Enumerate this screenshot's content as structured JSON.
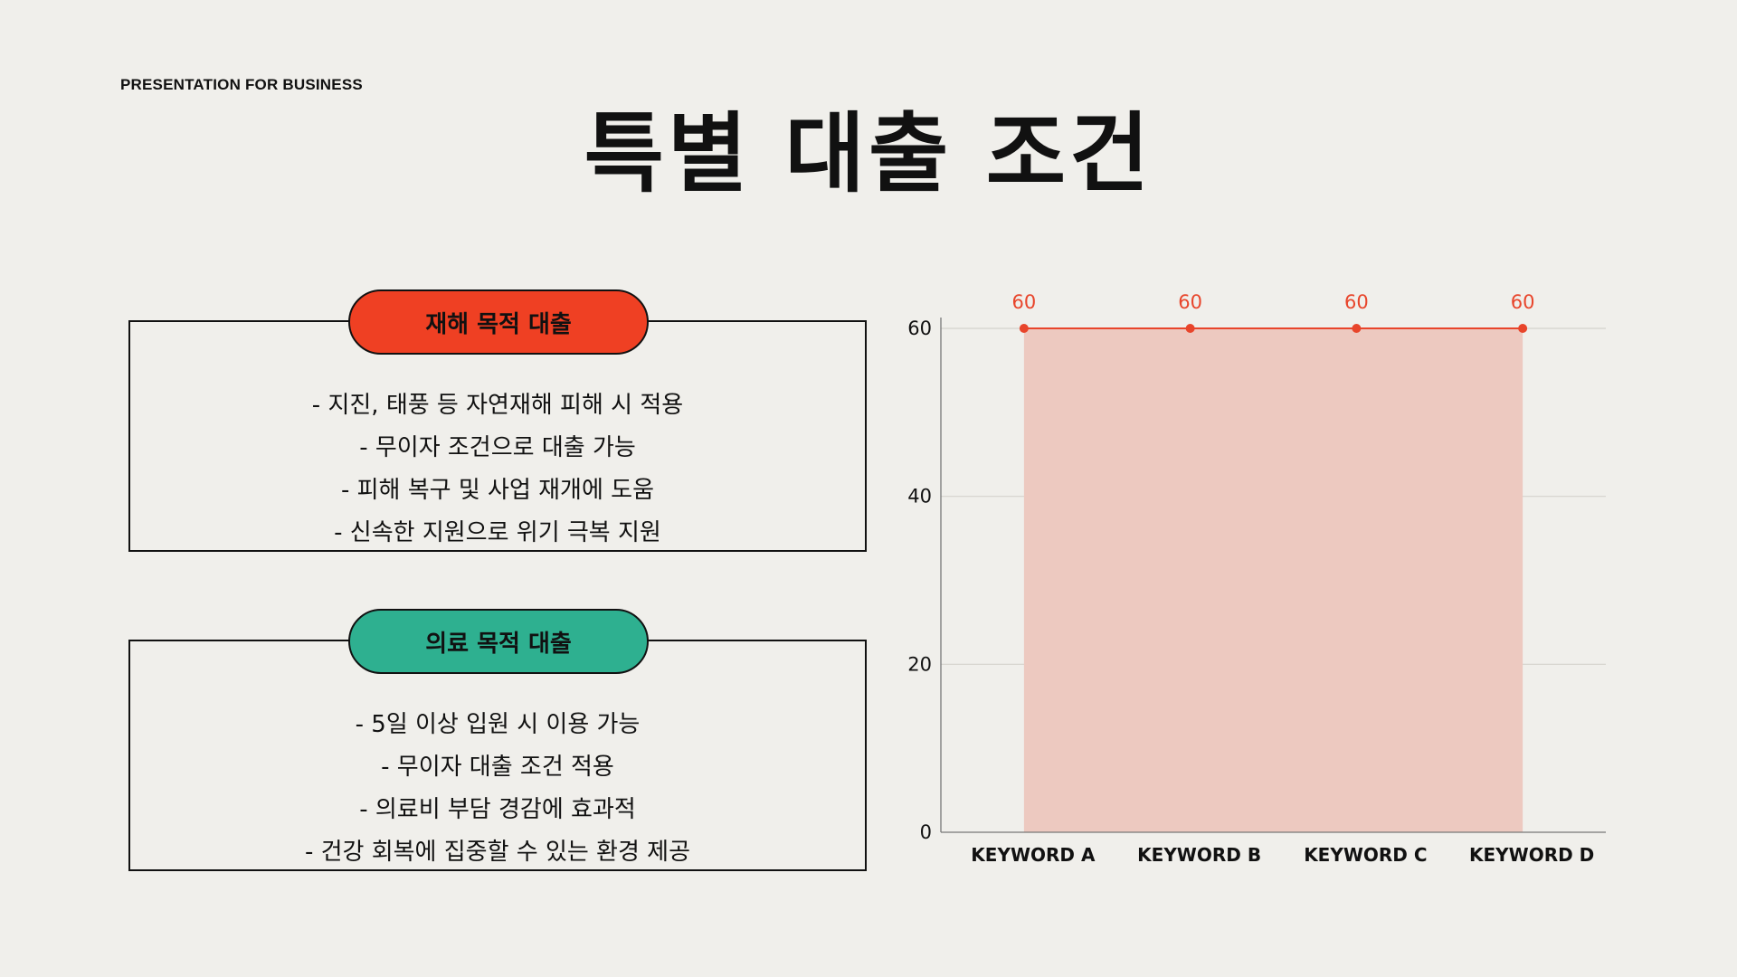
{
  "header": {
    "eyebrow": "PRESENTATION FOR BUSINESS",
    "title": "특별 대출 조건"
  },
  "cards": [
    {
      "label": "재해 목적 대출",
      "accent": "#ef4023",
      "items": [
        "- 지진, 태풍 등 자연재해 피해 시 적용",
        "- 무이자 조건으로 대출 가능",
        "- 피해 복구 및 사업 재개에 도움",
        "- 신속한 지원으로 위기 극복 지원"
      ]
    },
    {
      "label": "의료 목적 대출",
      "accent": "#2eb090",
      "items": [
        "- 5일 이상 입원 시 이용 가능",
        "- 무이자 대출 조건 적용",
        "- 의료비 부담 경감에 효과적",
        "- 건강 회복에 집중할 수 있는 환경 제공"
      ]
    }
  ],
  "chart_data": {
    "type": "area",
    "categories": [
      "KEYWORD A",
      "KEYWORD B",
      "KEYWORD C",
      "KEYWORD D"
    ],
    "series": [
      {
        "values": [
          60,
          60,
          60,
          60
        ],
        "color": "#e8452b",
        "fill": "#edc9c0"
      }
    ],
    "data_labels": [
      "60",
      "60",
      "60",
      "60"
    ],
    "yticks": [
      0,
      20,
      40,
      60
    ],
    "ylim": [
      0,
      60
    ],
    "grid": true,
    "legend": "none"
  }
}
